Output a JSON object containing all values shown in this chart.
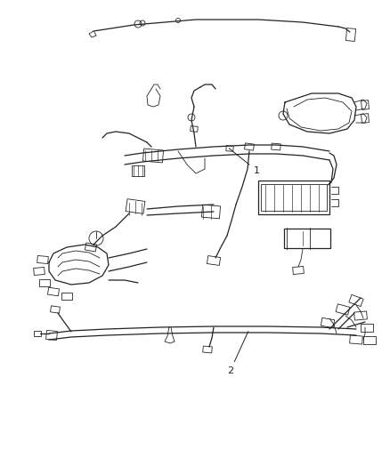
{
  "bg_color": "#ffffff",
  "line_color": "#222222",
  "fig_width": 4.39,
  "fig_height": 5.33,
  "dpi": 100,
  "label1": "1",
  "label2": "2"
}
